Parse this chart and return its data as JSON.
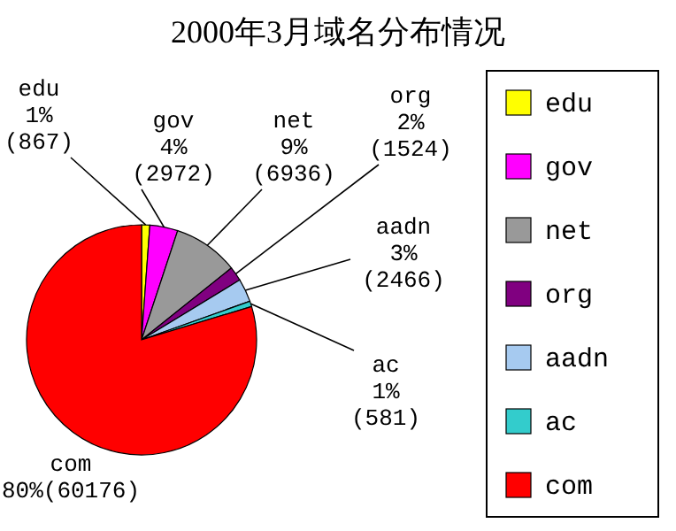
{
  "chart_data": {
    "type": "pie",
    "title": "2000年3月域名分布情况",
    "categories": [
      "edu",
      "gov",
      "net",
      "org",
      "aadn",
      "ac",
      "com"
    ],
    "values": [
      867,
      2972,
      6936,
      1524,
      2466,
      581,
      60176
    ],
    "value_labels": [
      "1%\n(867)",
      "4%\n(2972)",
      "9%\n(6936)",
      "2%\n(1524)",
      "3%\n(2466)",
      "1%\n(581)",
      "80%(60176)"
    ],
    "colors": [
      "#ffff00",
      "#ff00ff",
      "#999999",
      "#800080",
      "#a6caf0",
      "#33cccc",
      "#ff0000"
    ],
    "legend": "right"
  }
}
